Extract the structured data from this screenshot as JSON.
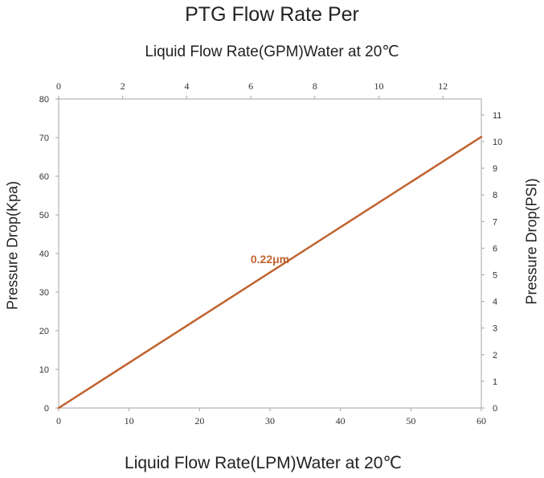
{
  "chart_data": {
    "type": "line",
    "title": "PTG Flow Rate Per",
    "x_top_label": "Liquid Flow Rate(GPM)Water  at 20℃",
    "xlabel": "Liquid Flow Rate(LPM)Water  at 20℃",
    "ylabel": "Pressure Drop(Kpa)",
    "y_right_label": "Pressure Drop(PSI)",
    "x_bottom_ticks": [
      "0",
      "10",
      "20",
      "30",
      "40",
      "50",
      "60"
    ],
    "x_top_ticks": [
      "0",
      "2",
      "4",
      "6",
      "8",
      "10",
      "12"
    ],
    "y_left_ticks": [
      "0",
      "10",
      "20",
      "30",
      "40",
      "50",
      "60",
      "70",
      "80"
    ],
    "y_right_ticks": [
      "0",
      "1",
      "2",
      "3",
      "4",
      "5",
      "6",
      "7",
      "8",
      "9",
      "10",
      "11"
    ],
    "xlim": [
      0,
      60
    ],
    "x_top_lim": [
      0,
      13.2
    ],
    "ylim": [
      0,
      80
    ],
    "y_right_lim": [
      0,
      11.6
    ],
    "series": [
      {
        "name": "0.22μm",
        "color": "#c0622e",
        "x": [
          0,
          60
        ],
        "y": [
          0,
          70.2
        ]
      }
    ],
    "annotations": [
      {
        "text": "0.22μm",
        "x": 30,
        "y": 37.5,
        "color": "#c0622e"
      }
    ]
  }
}
